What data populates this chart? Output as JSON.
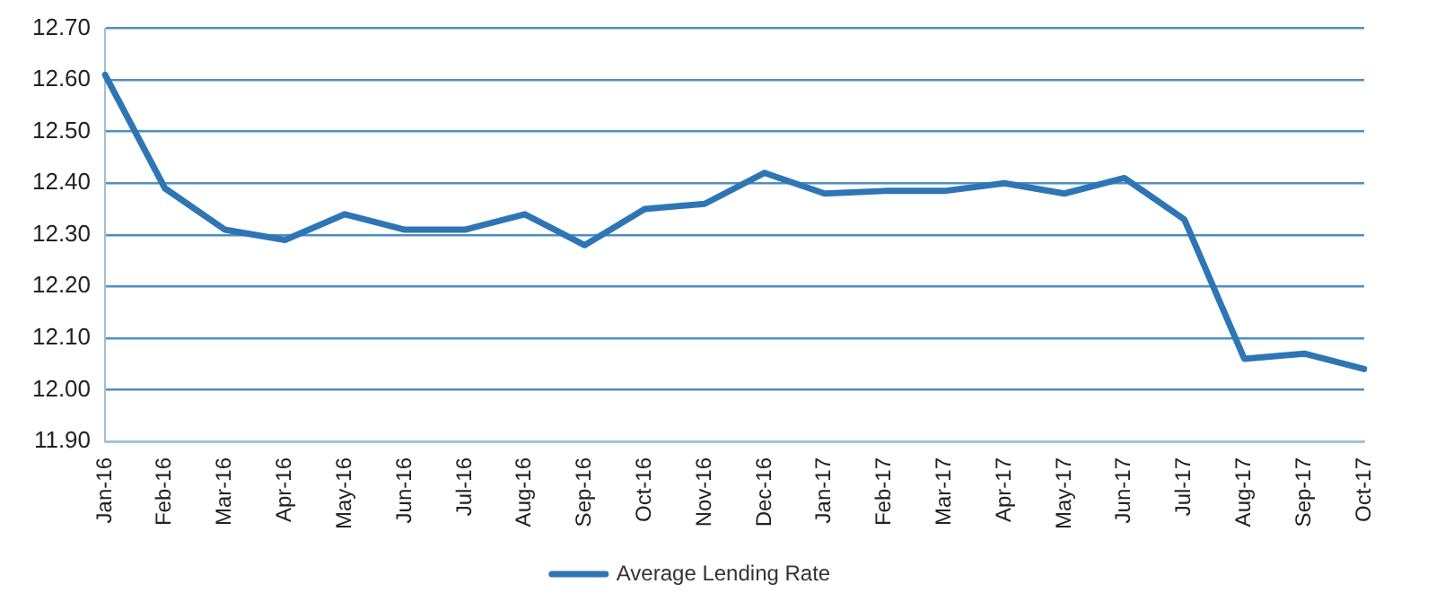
{
  "chart_data": {
    "type": "line",
    "categories": [
      "Jan-16",
      "Feb-16",
      "Mar-16",
      "Apr-16",
      "May-16",
      "Jun-16",
      "Jul-16",
      "Aug-16",
      "Sep-16",
      "Oct-16",
      "Nov-16",
      "Dec-16",
      "Jan-17",
      "Feb-17",
      "Mar-17",
      "Apr-17",
      "May-17",
      "Jun-17",
      "Jul-17",
      "Aug-17",
      "Sep-17",
      "Oct-17"
    ],
    "series": [
      {
        "name": "Average Lending Rate",
        "color": "#2e75b6",
        "values": [
          12.61,
          12.39,
          12.31,
          12.29,
          12.34,
          12.31,
          12.31,
          12.34,
          12.28,
          12.35,
          12.36,
          12.42,
          12.38,
          12.385,
          12.385,
          12.4,
          12.38,
          12.41,
          12.33,
          12.06,
          12.07,
          12.04
        ]
      }
    ],
    "ylim": [
      11.9,
      12.7
    ],
    "yticks": [
      {
        "value": 11.9,
        "label": "11.90"
      },
      {
        "value": 12.0,
        "label": "12.00"
      },
      {
        "value": 12.1,
        "label": "12.10"
      },
      {
        "value": 12.2,
        "label": "12.20"
      },
      {
        "value": 12.3,
        "label": "12.30"
      },
      {
        "value": 12.4,
        "label": "12.40"
      },
      {
        "value": 12.5,
        "label": "12.50"
      },
      {
        "value": 12.6,
        "label": "12.60"
      },
      {
        "value": 12.7,
        "label": "12.70"
      }
    ],
    "grid": "y",
    "legend": "bottom",
    "marker": "none",
    "line_style": "solid"
  }
}
